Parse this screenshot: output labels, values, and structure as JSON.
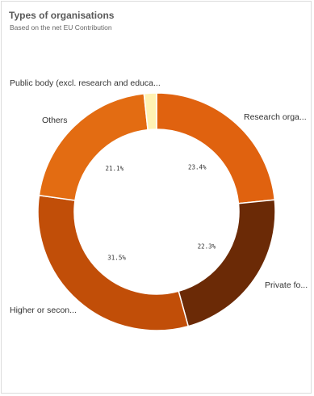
{
  "header": {
    "title": "Types of organisations",
    "subtitle": "Based on the net EU Contribution"
  },
  "chart_data": {
    "type": "pie",
    "donut": true,
    "title": "Types of organisations",
    "subtitle": "Based on the net EU Contribution",
    "slices": [
      {
        "label": "Research orga...",
        "value": 23.4,
        "value_label": "23.4%",
        "color": "#e0620f"
      },
      {
        "label": "Private fo...",
        "value": 22.3,
        "value_label": "22.3%",
        "color": "#6b2a06"
      },
      {
        "label": "Higher or secon...",
        "value": 31.5,
        "value_label": "31.5%",
        "color": "#c14e08"
      },
      {
        "label": "Others",
        "value": 21.1,
        "value_label": "21.1%",
        "color": "#e36c12"
      },
      {
        "label": "Public body (excl. research and educa...",
        "value": 1.7,
        "value_label": "",
        "color": "#fff2b3"
      }
    ]
  }
}
